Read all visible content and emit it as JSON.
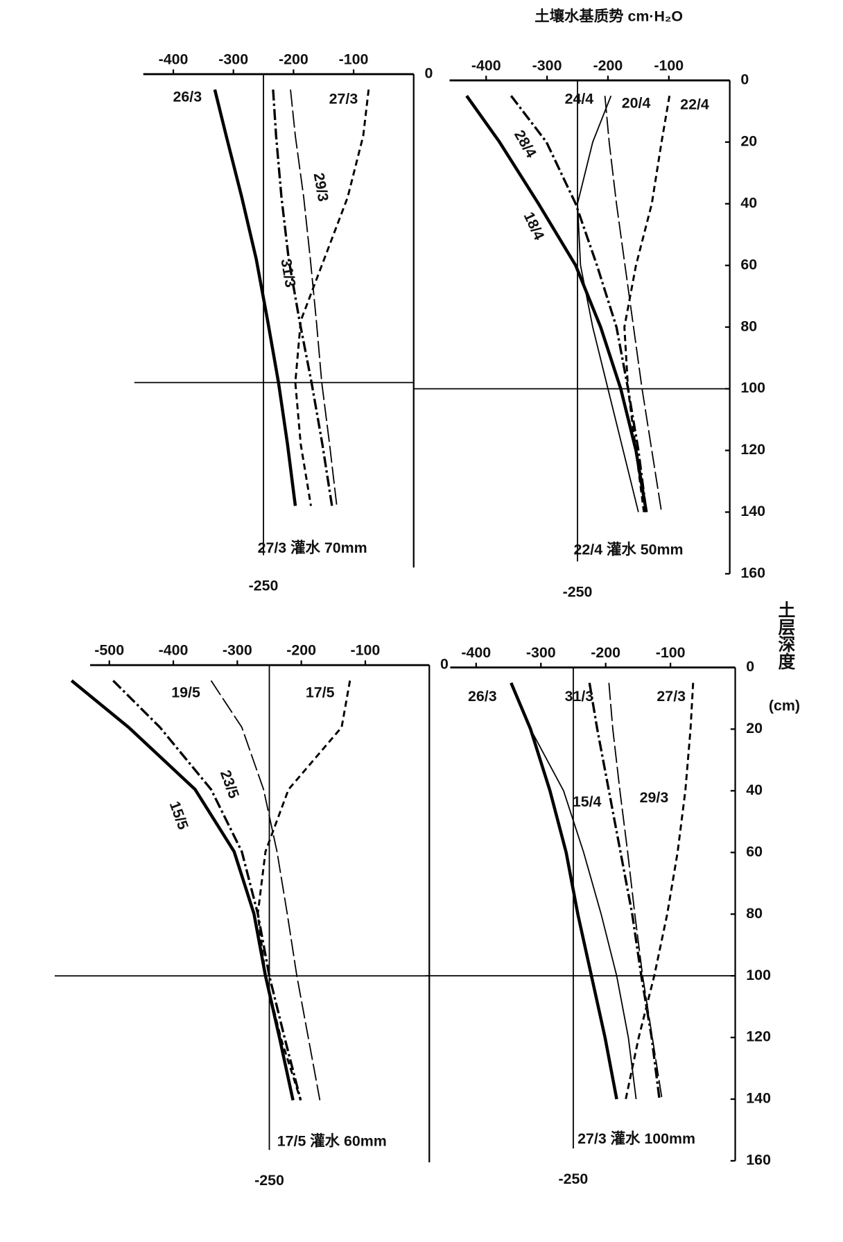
{
  "title": "土壤水基质势 cm·H₂O",
  "ylabel": "土层深度",
  "yunit": "(cm)",
  "chart_data": [
    {
      "type": "line",
      "annotation": "27/3 灌水 70mm",
      "ref_x": -250,
      "ref_y": 100,
      "xlim": [
        -450,
        0
      ],
      "ylim": [
        0,
        160
      ],
      "xticks": [
        -400,
        -300,
        -200,
        -100
      ],
      "yticks": [
        0
      ],
      "y": [
        5,
        20,
        40,
        60,
        80,
        100,
        120,
        140
      ],
      "series": [
        {
          "name": "26/3",
          "style": "solid-bold",
          "color": "#000",
          "values": [
            -331,
            -312,
            -286,
            -262,
            -243,
            -225,
            -210,
            -197
          ]
        },
        {
          "name": "27/3",
          "style": "dashed",
          "color": "#000",
          "values": [
            -75,
            -84,
            -110,
            -149,
            -188,
            -197,
            -188,
            -171
          ]
        },
        {
          "name": "29/3",
          "style": "longdash",
          "color": "#000",
          "values": [
            -205,
            -197,
            -183,
            -172,
            -162,
            -153,
            -140,
            -128
          ]
        },
        {
          "name": "31/3",
          "style": "dashdot",
          "color": "#000",
          "values": [
            -234,
            -229,
            -220,
            -208,
            -190,
            -170,
            -152,
            -136
          ]
        }
      ]
    },
    {
      "type": "line",
      "annotation": "22/4 灌水 50mm",
      "ref_x": -250,
      "ref_y": 100,
      "xlim": [
        -460,
        0
      ],
      "ylim": [
        0,
        160
      ],
      "xticks": [
        -400,
        -300,
        -200,
        -100
      ],
      "yticks": [
        0,
        20,
        40,
        60,
        80,
        100,
        120,
        140,
        160
      ],
      "y": [
        5,
        20,
        40,
        60,
        80,
        100,
        120,
        140
      ],
      "series": [
        {
          "name": "24/4",
          "style": "solid",
          "color": "#000",
          "values": [
            -195,
            -225,
            -250,
            -245,
            -225,
            -200,
            -175,
            -150
          ]
        },
        {
          "name": "20/4",
          "style": "longdash",
          "color": "#000",
          "values": [
            -205,
            -198,
            -186,
            -172,
            -158,
            -144,
            -128,
            -112
          ]
        },
        {
          "name": "22/4",
          "style": "dashed",
          "color": "#000",
          "values": [
            -99,
            -112,
            -128,
            -154,
            -173,
            -167,
            -154,
            -141
          ]
        },
        {
          "name": "28/4",
          "style": "dashdot",
          "color": "#000",
          "values": [
            -359,
            -301,
            -253,
            -218,
            -186,
            -167,
            -150,
            -137
          ]
        },
        {
          "name": "18/4",
          "style": "solid-bold",
          "color": "#000",
          "values": [
            -432,
            -378,
            -314,
            -253,
            -212,
            -179,
            -154,
            -137
          ]
        }
      ]
    },
    {
      "type": "line",
      "annotation": "17/5 灌水 60mm",
      "ref_x": -250,
      "ref_y": 100,
      "xlim": [
        -530,
        0
      ],
      "ylim": [
        0,
        160
      ],
      "xticks": [
        -500,
        -400,
        -300,
        -200,
        -100
      ],
      "yticks": [
        0
      ],
      "y": [
        5,
        20,
        40,
        60,
        80,
        100,
        120,
        140
      ],
      "series": [
        {
          "name": "19/5",
          "style": "longdash",
          "color": "#000",
          "values": [
            -341,
            -293,
            -259,
            -238,
            -222,
            -207,
            -189,
            -171
          ]
        },
        {
          "name": "17/5",
          "style": "dashed",
          "color": "#000",
          "values": [
            -124,
            -137,
            -220,
            -256,
            -268,
            -256,
            -232,
            -201
          ]
        },
        {
          "name": "23/5",
          "style": "dashdot",
          "color": "#000",
          "values": [
            -494,
            -421,
            -341,
            -293,
            -268,
            -250,
            -226,
            -201
          ]
        },
        {
          "name": "15/5",
          "style": "solid-bold",
          "color": "#000",
          "values": [
            -559,
            -470,
            -366,
            -305,
            -274,
            -256,
            -234,
            -213
          ]
        }
      ]
    },
    {
      "type": "line",
      "annotation": "27/3 灌水 100mm",
      "ref_x": -250,
      "ref_y": 100,
      "xlim": [
        -440,
        0
      ],
      "ylim": [
        0,
        160
      ],
      "xticks": [
        -400,
        -300,
        -200,
        -100
      ],
      "yticks": [
        0,
        20,
        40,
        60,
        80,
        100,
        120,
        140,
        160
      ],
      "y": [
        5,
        20,
        40,
        60,
        80,
        100,
        120,
        140
      ],
      "series": [
        {
          "name": "26/3",
          "style": "solid-bold",
          "color": "#000",
          "values": [
            -346,
            -316,
            -286,
            -261,
            -243,
            -222,
            -201,
            -183
          ]
        },
        {
          "name": "31/3",
          "style": "dashdot",
          "color": "#000",
          "values": [
            -225,
            -213,
            -195,
            -177,
            -159,
            -145,
            -129,
            -117
          ]
        },
        {
          "name": "27/3",
          "style": "dashed",
          "color": "#000",
          "values": [
            -65,
            -69,
            -77,
            -89,
            -105,
            -125,
            -149,
            -169
          ]
        },
        {
          "name": "15/4",
          "style": "solid",
          "color": "#000",
          "values": [
            -346,
            -316,
            -265,
            -234,
            -207,
            -183,
            -165,
            -153
          ]
        },
        {
          "name": "29/3",
          "style": "longdash",
          "color": "#000",
          "values": [
            -195,
            -189,
            -178,
            -166,
            -155,
            -143,
            -128,
            -113
          ]
        }
      ]
    }
  ]
}
